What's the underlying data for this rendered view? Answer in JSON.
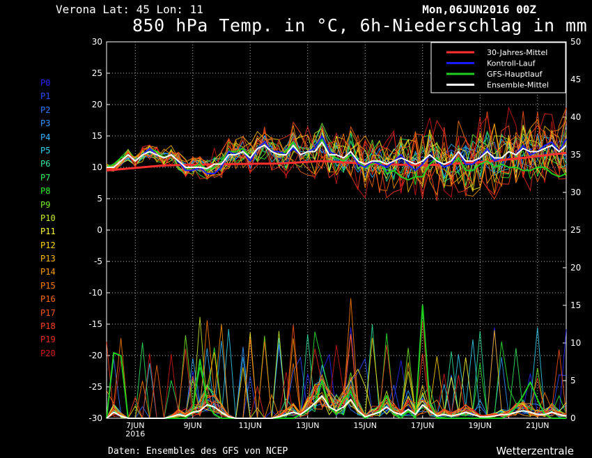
{
  "header": {
    "location": "Verona  Lat: 45 Lon: 11",
    "run": "Mon,06JUN2016 00Z",
    "title": "850 hPa Temp. in °C, 6h-Niederschlag in mm"
  },
  "members": [
    {
      "label": "P0",
      "color": "#2626ff"
    },
    {
      "label": "P1",
      "color": "#2a50ff"
    },
    {
      "label": "P2",
      "color": "#2f78ff"
    },
    {
      "label": "P3",
      "color": "#2f96ff"
    },
    {
      "label": "P4",
      "color": "#30b4ff"
    },
    {
      "label": "P5",
      "color": "#31d4ee"
    },
    {
      "label": "P6",
      "color": "#2fe8a0"
    },
    {
      "label": "P7",
      "color": "#2ef060"
    },
    {
      "label": "P8",
      "color": "#30f030"
    },
    {
      "label": "P9",
      "color": "#7af028"
    },
    {
      "label": "P10",
      "color": "#c8f028"
    },
    {
      "label": "P11",
      "color": "#ffff30"
    },
    {
      "label": "P12",
      "color": "#ffd800"
    },
    {
      "label": "P13",
      "color": "#ffb800"
    },
    {
      "label": "P14",
      "color": "#ff9a00"
    },
    {
      "label": "P15",
      "color": "#ff7e00"
    },
    {
      "label": "P16",
      "color": "#ff6a10"
    },
    {
      "label": "P17",
      "color": "#ff5518"
    },
    {
      "label": "P18",
      "color": "#ff4020"
    },
    {
      "label": "P19",
      "color": "#ee2a20"
    },
    {
      "label": "P20",
      "color": "#d81818"
    }
  ],
  "footer": {
    "source": "Daten: Ensembles des GFS von NCEP",
    "brand": "Wetterzentrale"
  },
  "chart_data": {
    "type": "line",
    "grid": true,
    "legend_position": "top-right",
    "x_ticks": [
      "7JUN",
      "9JUN",
      "11JUN",
      "13JUN",
      "15JUN",
      "17JUN",
      "19JUN",
      "21JUN"
    ],
    "x_year_label": "2016",
    "x_start": 6.0,
    "x_end": 22.0,
    "y_left": {
      "min": -30,
      "max": 30,
      "step": 5
    },
    "y_right": {
      "min": 0,
      "max": 50,
      "step": 5
    },
    "legend": [
      {
        "label": "30-Jahres-Mittel",
        "color": "#ff3030"
      },
      {
        "label": "Kontroll-Lauf",
        "color": "#1a1aff"
      },
      {
        "label": "GFS-Hauptlauf",
        "color": "#20d020"
      },
      {
        "label": "Ensemble-Mittel",
        "color": "#ffffff"
      }
    ],
    "series": [
      {
        "name": "30-Jahres-Mittel",
        "axis": "left",
        "color": "#ff3030",
        "x": [
          6.0,
          8.0,
          10.0,
          12.0,
          13.5,
          15.0,
          17.0,
          19.0,
          20.5,
          22.0
        ],
        "y": [
          9.5,
          10.3,
          10.5,
          10.6,
          11.0,
          10.6,
          10.3,
          10.8,
          11.5,
          12.3
        ]
      },
      {
        "name": "Ensemble-Mittel",
        "axis": "left",
        "color": "#ffffff",
        "x": [
          6.0,
          6.25,
          6.5,
          6.75,
          7.0,
          7.25,
          7.5,
          7.75,
          8.0,
          8.25,
          8.5,
          8.75,
          9.0,
          9.25,
          9.5,
          9.75,
          10.0,
          10.25,
          10.5,
          10.75,
          11.0,
          11.25,
          11.5,
          11.75,
          12.0,
          12.25,
          12.5,
          12.75,
          13.0,
          13.25,
          13.5,
          13.75,
          14.0,
          14.25,
          14.5,
          14.75,
          15.0,
          15.25,
          15.5,
          15.75,
          16.0,
          16.25,
          16.5,
          16.75,
          17.0,
          17.25,
          17.5,
          17.75,
          18.0,
          18.25,
          18.5,
          18.75,
          19.0,
          19.25,
          19.5,
          19.75,
          20.0,
          20.25,
          20.5,
          20.75,
          21.0,
          21.25,
          21.5,
          21.75,
          22.0
        ],
        "y": [
          10,
          10,
          11,
          12,
          11,
          12,
          12.5,
          12,
          11.5,
          12,
          11,
          10,
          10,
          10,
          9.8,
          10.5,
          10.5,
          12,
          12,
          12.5,
          11.5,
          13,
          13.5,
          12.5,
          12,
          12,
          13.5,
          12,
          12.5,
          12.5,
          14,
          12,
          12,
          11.5,
          12.5,
          11,
          10.5,
          11,
          11,
          10.5,
          11,
          11.5,
          11,
          10.5,
          11,
          12,
          11,
          10.5,
          11,
          12.5,
          11,
          11,
          11.5,
          12.5,
          11.5,
          11.5,
          12.5,
          12,
          13,
          12.5,
          12.5,
          13,
          13.5,
          12.5,
          13.5
        ]
      },
      {
        "name": "Kontroll-Lauf",
        "axis": "left",
        "color": "#1a1aff",
        "x": [
          6.0,
          6.25,
          6.5,
          6.75,
          7.0,
          7.25,
          7.5,
          7.75,
          8.0,
          8.25,
          8.5,
          8.75,
          9.0,
          9.25,
          9.5,
          9.75,
          10.0,
          10.25,
          10.5,
          10.75,
          11.0,
          11.25,
          11.5,
          11.75,
          12.0,
          12.25,
          12.5,
          12.75,
          13.0,
          13.25,
          13.5,
          13.75,
          14.0,
          14.25,
          14.5,
          14.75,
          15.0,
          15.25,
          15.5,
          15.75,
          16.0,
          16.25,
          16.5,
          16.75,
          17.0,
          17.25,
          17.5,
          17.75,
          18.0,
          18.25,
          18.5,
          18.75,
          19.0,
          19.25,
          19.5,
          19.75,
          20.0,
          20.25,
          20.5,
          20.75,
          21.0,
          21.25,
          21.5,
          21.75,
          22.0
        ],
        "y": [
          10,
          10,
          11,
          12,
          11,
          12,
          13,
          12,
          11.5,
          12,
          11,
          9.5,
          9.5,
          10,
          9,
          9,
          10,
          12.5,
          12,
          12.5,
          11,
          13,
          14,
          12.5,
          12.5,
          12,
          13,
          12,
          12.5,
          13,
          15,
          12.5,
          12,
          11.5,
          12.5,
          10.5,
          10,
          11,
          10.5,
          10,
          11,
          12,
          10.5,
          9.5,
          10.5,
          12,
          11,
          10,
          10.5,
          12.5,
          10.5,
          10.5,
          11.5,
          13,
          11,
          11.5,
          12.5,
          12,
          13.5,
          12,
          12.5,
          13.5,
          14,
          12.5,
          14.5
        ]
      },
      {
        "name": "GFS-Hauptlauf",
        "axis": "left",
        "color": "#20d020",
        "x": [
          6.0,
          6.25,
          6.5,
          6.75,
          7.0,
          7.25,
          7.5,
          7.75,
          8.0,
          8.25,
          8.5,
          8.75,
          9.0,
          9.25,
          9.5,
          9.75,
          10.0,
          10.25,
          10.5,
          10.75,
          11.0,
          11.25,
          11.5,
          11.75,
          12.0,
          12.25,
          12.5,
          12.75,
          13.0,
          13.25,
          13.5,
          13.75,
          14.0,
          14.25,
          14.5,
          14.75,
          15.0,
          15.25,
          15.5,
          15.75,
          16.0,
          16.25,
          16.5,
          16.75,
          17.0,
          17.25,
          17.5,
          17.75,
          18.0,
          18.25,
          18.5,
          18.75,
          19.0,
          19.25,
          19.5,
          19.75,
          20.0,
          20.25,
          20.5,
          20.75,
          21.0,
          21.25,
          21.5,
          21.75,
          22.0
        ],
        "y": [
          10,
          10.5,
          11.5,
          12,
          11,
          12,
          13,
          12.5,
          11.5,
          12,
          11,
          9.5,
          10,
          10.5,
          9.5,
          10,
          11,
          12.5,
          12.5,
          13,
          11.5,
          13,
          14,
          12.5,
          12,
          12.5,
          14,
          12,
          12.5,
          13,
          14.5,
          12,
          11.5,
          11,
          12,
          11,
          10,
          10.5,
          11,
          9,
          9.5,
          8.5,
          8,
          8.5,
          8.5,
          10.5,
          11.5,
          10,
          10.5,
          11.5,
          9.5,
          9.5,
          10.5,
          11,
          10,
          10.5,
          10,
          10,
          9.5,
          9.5,
          10,
          10,
          9,
          8.5,
          9
        ]
      },
      {
        "name": "Niederschlag Ensemble-Mittel",
        "axis": "right",
        "color": "#ffffff",
        "x": [
          6.0,
          6.25,
          6.5,
          6.75,
          7.0,
          7.25,
          7.5,
          7.75,
          8.0,
          8.25,
          8.5,
          8.75,
          9.0,
          9.25,
          9.5,
          9.75,
          10.0,
          10.25,
          10.5,
          10.75,
          11.0,
          11.25,
          11.5,
          11.75,
          12.0,
          12.25,
          12.5,
          12.75,
          13.0,
          13.25,
          13.5,
          13.75,
          14.0,
          14.25,
          14.5,
          14.75,
          15.0,
          15.25,
          15.5,
          15.75,
          16.0,
          16.25,
          16.5,
          16.75,
          17.0,
          17.25,
          17.5,
          17.75,
          18.0,
          18.25,
          18.5,
          18.75,
          19.0,
          19.25,
          19.5,
          19.75,
          20.0,
          20.25,
          20.5,
          20.75,
          21.0,
          21.25,
          21.5,
          21.75,
          22.0
        ],
        "y": [
          0,
          0.8,
          0.3,
          0,
          0,
          0,
          0,
          0,
          0,
          0.2,
          0.5,
          0.3,
          0.8,
          1.0,
          1.8,
          1.5,
          0.8,
          0.2,
          0,
          0,
          0,
          0,
          0,
          0,
          0.2,
          0.5,
          0.8,
          0.5,
          1.2,
          2.0,
          3.0,
          1.5,
          1.0,
          1.5,
          2.5,
          1.0,
          0.2,
          0.5,
          0.8,
          1.5,
          0.8,
          0.5,
          1.2,
          0.5,
          1.8,
          1.0,
          0.3,
          0.5,
          0.3,
          0.5,
          0.8,
          0.5,
          0.2,
          0.2,
          0.3,
          0.5,
          0.5,
          0.8,
          1.0,
          0.8,
          0.5,
          0.5,
          0.8,
          0.5,
          0.3
        ]
      },
      {
        "name": "Niederschlag GFS-Hauptlauf",
        "axis": "right",
        "color": "#20d020",
        "x": [
          6.0,
          6.25,
          6.5,
          6.75,
          7.0,
          7.25,
          7.5,
          7.75,
          8.0,
          8.25,
          8.5,
          8.75,
          9.0,
          9.25,
          9.5,
          9.75,
          10.0,
          10.25,
          10.5,
          10.75,
          11.0,
          11.25,
          11.5,
          11.75,
          12.0,
          12.25,
          12.5,
          12.75,
          13.0,
          13.25,
          13.5,
          13.75,
          14.0,
          14.25,
          14.5,
          14.75,
          15.0,
          15.25,
          15.5,
          15.75,
          16.0,
          16.25,
          16.5,
          16.75,
          17.0,
          17.25,
          17.5,
          17.75,
          18.0,
          18.25,
          18.5,
          18.75,
          19.0,
          19.25,
          19.5,
          19.75,
          20.0,
          20.25,
          20.5,
          20.75,
          21.0,
          21.25,
          21.5,
          21.75,
          22.0
        ],
        "y": [
          0,
          8.7,
          8.3,
          0,
          0,
          0,
          0,
          0,
          0,
          0,
          0,
          0,
          1.0,
          7.8,
          2.0,
          0.5,
          0,
          0,
          0,
          0,
          0,
          0,
          0,
          0,
          0,
          0,
          0,
          0.5,
          1.0,
          2.0,
          5.0,
          1.5,
          0.5,
          2.5,
          3.5,
          1.0,
          0,
          0.5,
          1.0,
          3.0,
          0.5,
          0,
          1.0,
          0,
          15.0,
          2.0,
          0,
          0,
          0,
          0,
          0,
          0,
          0,
          0,
          0,
          0,
          0.5,
          1.5,
          3.0,
          4.8,
          2.5,
          0.5,
          0,
          0,
          0
        ]
      }
    ]
  }
}
